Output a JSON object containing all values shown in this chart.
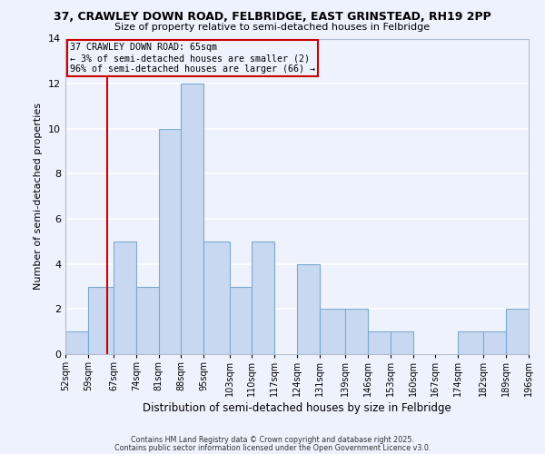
{
  "title1": "37, CRAWLEY DOWN ROAD, FELBRIDGE, EAST GRINSTEAD, RH19 2PP",
  "title2": "Size of property relative to semi-detached houses in Felbridge",
  "xlabel": "Distribution of semi-detached houses by size in Felbridge",
  "ylabel": "Number of semi-detached properties",
  "bin_edges": [
    52,
    59,
    67,
    74,
    81,
    88,
    95,
    103,
    110,
    117,
    124,
    131,
    139,
    146,
    153,
    160,
    167,
    174,
    182,
    189,
    196
  ],
  "counts": [
    1,
    3,
    5,
    3,
    10,
    12,
    5,
    3,
    5,
    0,
    4,
    2,
    2,
    1,
    1,
    0,
    0,
    1,
    1,
    2
  ],
  "bar_color": "#c8d8f0",
  "bar_edgecolor": "#7aaad0",
  "property_value": 65,
  "vline_color": "#cc0000",
  "annotation_line1": "37 CRAWLEY DOWN ROAD: 65sqm",
  "annotation_line2": "← 3% of semi-detached houses are smaller (2)",
  "annotation_line3": "96% of semi-detached houses are larger (66) →",
  "annotation_box_edgecolor": "#cc0000",
  "ylim": [
    0,
    14
  ],
  "yticks": [
    0,
    2,
    4,
    6,
    8,
    10,
    12,
    14
  ],
  "tick_labels": [
    "52sqm",
    "59sqm",
    "67sqm",
    "74sqm",
    "81sqm",
    "88sqm",
    "95sqm",
    "103sqm",
    "110sqm",
    "117sqm",
    "124sqm",
    "131sqm",
    "139sqm",
    "146sqm",
    "153sqm",
    "160sqm",
    "167sqm",
    "174sqm",
    "182sqm",
    "189sqm",
    "196sqm"
  ],
  "background_color": "#eef2fc",
  "footer1": "Contains HM Land Registry data © Crown copyright and database right 2025.",
  "footer2": "Contains public sector information licensed under the Open Government Licence v3.0.",
  "grid_color": "#ffffff"
}
